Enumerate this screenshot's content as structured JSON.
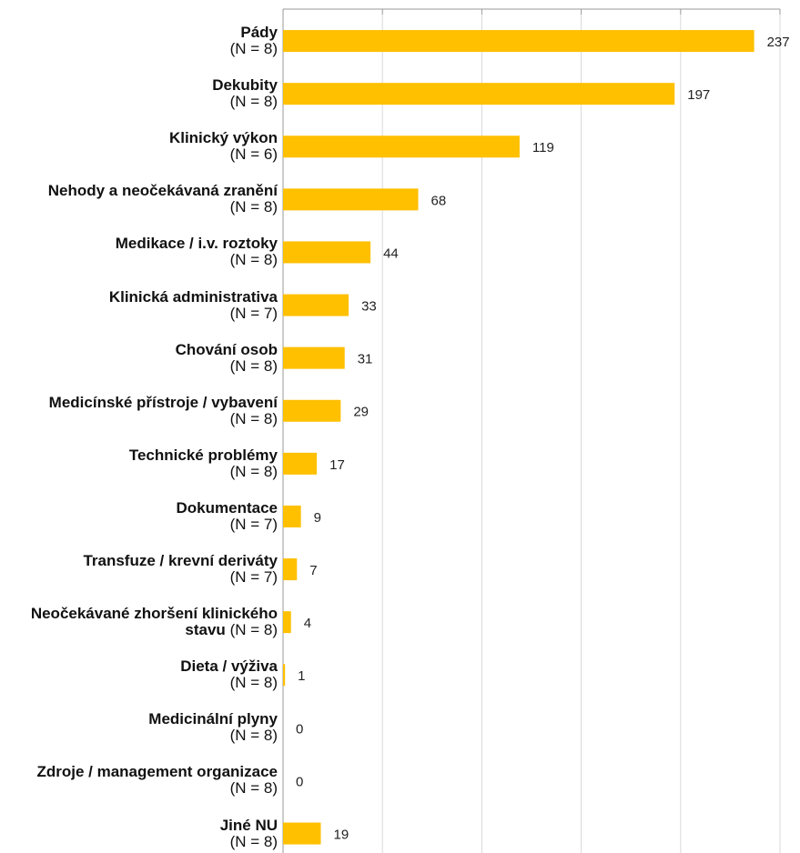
{
  "chart_data": {
    "type": "barh",
    "categories": [
      {
        "name": "Pády",
        "n": "(N = 8)"
      },
      {
        "name": "Dekubity",
        "n": "(N = 8)"
      },
      {
        "name": "Klinický výkon",
        "n": "(N = 6)"
      },
      {
        "name": "Nehody a neočekávaná zranění",
        "n": "(N = 8)"
      },
      {
        "name": "Medikace / i.v. roztoky",
        "n": "(N = 8)"
      },
      {
        "name": "Klinická administrativa",
        "n": "(N = 7)"
      },
      {
        "name": "Chování osob",
        "n": "(N = 8)"
      },
      {
        "name": "Medicínské přístroje / vybavení",
        "n": "(N = 8)"
      },
      {
        "name": "Technické problémy",
        "n": "(N = 8)"
      },
      {
        "name": "Dokumentace",
        "n": "(N = 7)"
      },
      {
        "name": "Transfuze / krevní deriváty",
        "n": "(N = 7)"
      },
      {
        "name": "Neočekávané zhoršení klinického stavu",
        "n": "(N = 8)"
      },
      {
        "name": "Dieta / výživa",
        "n": "(N = 8)"
      },
      {
        "name": "Medicinální plyny",
        "n": "(N = 8)"
      },
      {
        "name": "Zdroje / management organizace",
        "n": "(N = 8)"
      },
      {
        "name": "Jiné NU",
        "n": "(N = 8)"
      }
    ],
    "values": [
      237,
      197,
      119,
      68,
      44,
      33,
      31,
      29,
      17,
      9,
      7,
      4,
      1,
      0,
      0,
      19
    ],
    "color": "#ffc000",
    "xlim": [
      0,
      250
    ],
    "xticks": [
      0,
      50,
      100,
      150,
      200,
      250
    ],
    "grid": true
  }
}
